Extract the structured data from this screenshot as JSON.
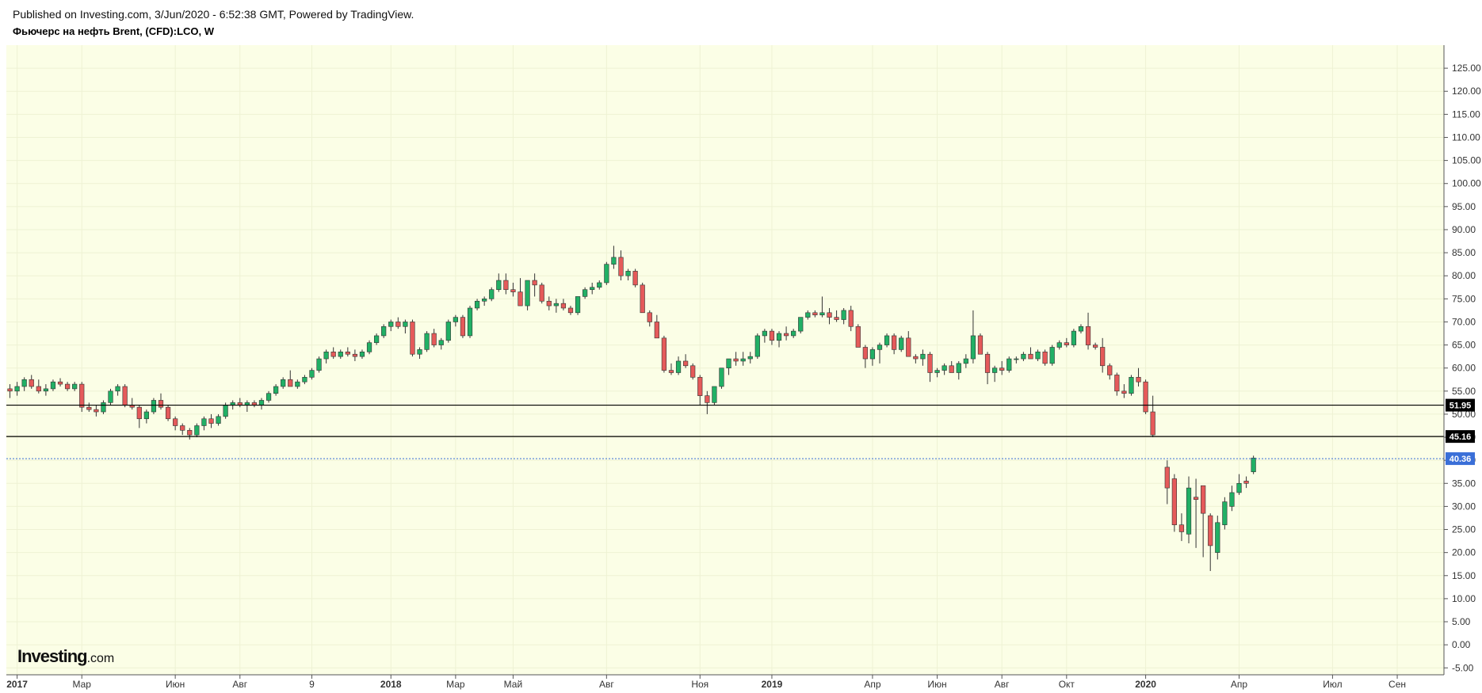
{
  "header": {
    "published": "Published on Investing.com, 3/Jun/2020 - 6:52:38 GMT, Powered by TradingView.",
    "symbol": "Фьючерс на нефть Brent, (CFD):LCO, W"
  },
  "logo": {
    "main": "Investing",
    "suffix": ".com"
  },
  "colors": {
    "background": "#fbfee6",
    "up": "#21b065",
    "down": "#e55a5a",
    "wick": "#333333",
    "level_line": "#000000",
    "current_line": "#3a6fd8",
    "current_badge": "#3a6fd8",
    "level_badge": "#000000"
  },
  "chart_data": {
    "type": "candlestick",
    "timeframe": "W",
    "y_ticks": [
      "125.00",
      "120.00",
      "115.00",
      "110.00",
      "105.00",
      "100.00",
      "95.00",
      "90.00",
      "85.00",
      "80.00",
      "75.00",
      "70.00",
      "65.00",
      "60.00",
      "55.00",
      "50.00",
      "45.00",
      "40.00",
      "35.00",
      "30.00",
      "25.00",
      "20.00",
      "15.00",
      "10.00",
      "5.00",
      "0.00",
      "-5.00"
    ],
    "y_tick_values": [
      125,
      120,
      115,
      110,
      105,
      100,
      95,
      90,
      85,
      80,
      75,
      70,
      65,
      60,
      55,
      50,
      45,
      40,
      35,
      30,
      25,
      20,
      15,
      10,
      5,
      0,
      -5
    ],
    "ylim": [
      -6.5,
      130
    ],
    "x_labels": [
      {
        "text": "2017",
        "year": true
      },
      {
        "text": "Мар",
        "year": false
      },
      {
        "text": "Июн",
        "year": false
      },
      {
        "text": "Авг",
        "year": false
      },
      {
        "text": "9",
        "year": false
      },
      {
        "text": "2018",
        "year": true
      },
      {
        "text": "Мар",
        "year": false
      },
      {
        "text": "Май",
        "year": false
      },
      {
        "text": "Авг",
        "year": false
      },
      {
        "text": "Ноя",
        "year": false
      },
      {
        "text": "2019",
        "year": true
      },
      {
        "text": "Апр",
        "year": false
      },
      {
        "text": "Июн",
        "year": false
      },
      {
        "text": "Авг",
        "year": false
      },
      {
        "text": "Окт",
        "year": false
      },
      {
        "text": "2020",
        "year": true
      },
      {
        "text": "Апр",
        "year": false
      },
      {
        "text": "Июл",
        "year": false
      },
      {
        "text": "Сен",
        "year": false
      }
    ],
    "x_label_weeks": [
      1,
      10,
      23,
      32,
      42,
      53,
      62,
      70,
      83,
      96,
      106,
      120,
      129,
      138,
      147,
      158,
      171,
      184,
      193
    ],
    "total_weeks": 200,
    "levels": [
      {
        "value": 51.95,
        "label": "51.95",
        "style": "solid"
      },
      {
        "value": 45.16,
        "label": "45.16",
        "style": "solid"
      }
    ],
    "current": {
      "value": 40.36,
      "label": "40.36",
      "style": "dotted"
    },
    "candles": [
      [
        55.5,
        56.5,
        53.5,
        55.0
      ],
      [
        55.0,
        57.0,
        54.0,
        56.0
      ],
      [
        56.0,
        58.0,
        55.0,
        57.5
      ],
      [
        57.5,
        58.5,
        55.5,
        56.0
      ],
      [
        56.0,
        57.5,
        54.5,
        55.0
      ],
      [
        55.0,
        56.5,
        54.0,
        55.5
      ],
      [
        55.5,
        57.5,
        55.0,
        57.0
      ],
      [
        57.0,
        57.8,
        56.0,
        56.5
      ],
      [
        56.5,
        57.0,
        55.0,
        55.5
      ],
      [
        55.5,
        57.0,
        55.0,
        56.5
      ],
      [
        56.5,
        57.0,
        50.5,
        51.5
      ],
      [
        51.5,
        52.5,
        50.5,
        51.0
      ],
      [
        51.0,
        52.0,
        49.5,
        50.5
      ],
      [
        50.5,
        53.0,
        50.0,
        52.5
      ],
      [
        52.5,
        55.5,
        52.0,
        55.0
      ],
      [
        55.0,
        56.5,
        54.0,
        56.0
      ],
      [
        56.0,
        56.5,
        51.5,
        52.0
      ],
      [
        52.0,
        53.5,
        51.0,
        51.5
      ],
      [
        51.5,
        52.0,
        47.0,
        49.0
      ],
      [
        49.0,
        51.0,
        48.0,
        50.5
      ],
      [
        50.5,
        53.5,
        50.0,
        53.0
      ],
      [
        53.0,
        54.5,
        51.0,
        51.5
      ],
      [
        51.5,
        52.0,
        48.5,
        49.0
      ],
      [
        49.0,
        49.5,
        46.5,
        47.5
      ],
      [
        47.5,
        48.0,
        45.5,
        46.5
      ],
      [
        46.5,
        47.0,
        44.5,
        45.5
      ],
      [
        45.5,
        48.0,
        45.0,
        47.5
      ],
      [
        47.5,
        49.5,
        46.5,
        49.0
      ],
      [
        49.0,
        50.0,
        47.0,
        48.0
      ],
      [
        48.0,
        50.0,
        47.5,
        49.5
      ],
      [
        49.5,
        52.5,
        49.0,
        52.0
      ],
      [
        52.0,
        53.0,
        51.0,
        52.5
      ],
      [
        52.5,
        53.5,
        51.5,
        52.0
      ],
      [
        52.0,
        53.0,
        50.5,
        52.5
      ],
      [
        52.5,
        53.0,
        51.5,
        52.0
      ],
      [
        52.0,
        53.5,
        51.0,
        53.0
      ],
      [
        53.0,
        55.0,
        52.5,
        54.5
      ],
      [
        54.5,
        56.5,
        54.0,
        56.0
      ],
      [
        56.0,
        58.0,
        55.5,
        57.5
      ],
      [
        57.5,
        59.5,
        56.5,
        56.0
      ],
      [
        56.0,
        57.5,
        55.5,
        57.0
      ],
      [
        57.0,
        58.5,
        56.5,
        58.0
      ],
      [
        58.0,
        60.0,
        57.5,
        59.5
      ],
      [
        59.5,
        62.5,
        59.0,
        62.0
      ],
      [
        62.0,
        64.0,
        61.0,
        63.5
      ],
      [
        63.5,
        64.5,
        62.0,
        62.5
      ],
      [
        62.5,
        64.0,
        62.0,
        63.5
      ],
      [
        63.5,
        64.5,
        62.5,
        63.0
      ],
      [
        63.0,
        64.0,
        61.5,
        62.5
      ],
      [
        62.5,
        64.0,
        62.0,
        63.5
      ],
      [
        63.5,
        66.0,
        63.0,
        65.5
      ],
      [
        65.5,
        67.5,
        65.0,
        67.0
      ],
      [
        67.0,
        69.5,
        66.5,
        69.0
      ],
      [
        69.0,
        70.5,
        68.0,
        70.0
      ],
      [
        70.0,
        71.0,
        68.5,
        69.0
      ],
      [
        69.0,
        70.5,
        67.5,
        70.0
      ],
      [
        70.0,
        70.5,
        62.5,
        63.0
      ],
      [
        63.0,
        64.5,
        62.0,
        64.0
      ],
      [
        64.0,
        68.0,
        63.5,
        67.5
      ],
      [
        67.5,
        68.5,
        64.5,
        65.0
      ],
      [
        65.0,
        66.5,
        64.0,
        66.0
      ],
      [
        66.0,
        70.5,
        65.5,
        70.0
      ],
      [
        70.0,
        71.5,
        69.0,
        71.0
      ],
      [
        71.0,
        71.5,
        66.5,
        67.0
      ],
      [
        67.0,
        73.5,
        66.5,
        73.0
      ],
      [
        73.0,
        75.0,
        72.5,
        74.5
      ],
      [
        74.5,
        75.5,
        73.5,
        75.0
      ],
      [
        75.0,
        77.5,
        74.5,
        77.0
      ],
      [
        77.0,
        80.5,
        76.5,
        79.0
      ],
      [
        79.0,
        80.5,
        76.0,
        77.0
      ],
      [
        77.0,
        78.5,
        75.5,
        76.5
      ],
      [
        76.5,
        79.5,
        73.5,
        73.5
      ],
      [
        73.5,
        79.0,
        72.5,
        79.0
      ],
      [
        79.0,
        80.5,
        75.5,
        78.0
      ],
      [
        78.0,
        78.5,
        74.0,
        74.5
      ],
      [
        74.5,
        75.5,
        72.5,
        73.5
      ],
      [
        73.5,
        75.0,
        72.0,
        74.0
      ],
      [
        74.0,
        75.0,
        72.5,
        73.0
      ],
      [
        73.0,
        73.5,
        71.5,
        72.0
      ],
      [
        72.0,
        75.5,
        71.5,
        75.5
      ],
      [
        75.5,
        77.5,
        75.0,
        77.0
      ],
      [
        77.0,
        78.5,
        76.0,
        77.5
      ],
      [
        77.5,
        79.0,
        77.0,
        78.5
      ],
      [
        78.5,
        83.0,
        78.0,
        82.5
      ],
      [
        82.5,
        86.5,
        81.5,
        84.0
      ],
      [
        84.0,
        85.5,
        79.0,
        80.0
      ],
      [
        80.0,
        81.5,
        79.0,
        81.0
      ],
      [
        81.0,
        81.5,
        77.5,
        78.0
      ],
      [
        78.0,
        78.5,
        72.0,
        72.0
      ],
      [
        72.0,
        72.5,
        69.0,
        70.0
      ],
      [
        70.0,
        71.5,
        66.5,
        66.5
      ],
      [
        66.5,
        67.0,
        59.0,
        59.5
      ],
      [
        59.5,
        61.0,
        58.5,
        59.0
      ],
      [
        59.0,
        62.5,
        58.5,
        61.5
      ],
      [
        61.5,
        63.0,
        60.0,
        60.5
      ],
      [
        60.5,
        61.0,
        57.5,
        58.0
      ],
      [
        58.0,
        58.5,
        52.0,
        54.0
      ],
      [
        54.0,
        55.0,
        50.0,
        52.5
      ],
      [
        52.5,
        56.0,
        52.0,
        56.0
      ],
      [
        56.0,
        60.0,
        55.5,
        60.0
      ],
      [
        60.0,
        62.0,
        58.5,
        62.0
      ],
      [
        62.0,
        63.5,
        60.5,
        61.5
      ],
      [
        61.5,
        63.5,
        60.5,
        62.0
      ],
      [
        62.0,
        63.5,
        61.0,
        62.5
      ],
      [
        62.5,
        67.5,
        62.0,
        67.0
      ],
      [
        67.0,
        68.5,
        65.5,
        68.0
      ],
      [
        68.0,
        68.5,
        65.0,
        66.0
      ],
      [
        66.0,
        68.0,
        64.5,
        67.5
      ],
      [
        67.5,
        69.0,
        66.0,
        67.0
      ],
      [
        67.0,
        68.5,
        66.5,
        68.0
      ],
      [
        68.0,
        71.0,
        67.5,
        71.0
      ],
      [
        71.0,
        72.5,
        70.5,
        72.0
      ],
      [
        72.0,
        72.5,
        71.0,
        71.5
      ],
      [
        71.5,
        75.5,
        71.0,
        72.0
      ],
      [
        72.0,
        73.0,
        69.5,
        71.0
      ],
      [
        71.0,
        72.5,
        70.0,
        70.5
      ],
      [
        70.5,
        73.0,
        69.5,
        72.5
      ],
      [
        72.5,
        73.5,
        68.0,
        69.0
      ],
      [
        69.0,
        69.5,
        64.5,
        64.5
      ],
      [
        64.5,
        65.0,
        60.0,
        62.0
      ],
      [
        62.0,
        64.5,
        60.5,
        64.0
      ],
      [
        64.0,
        65.5,
        61.0,
        65.0
      ],
      [
        65.0,
        67.5,
        64.5,
        67.0
      ],
      [
        67.0,
        67.5,
        63.0,
        64.0
      ],
      [
        64.0,
        67.0,
        63.5,
        66.5
      ],
      [
        66.5,
        68.0,
        62.5,
        62.5
      ],
      [
        62.5,
        63.0,
        61.0,
        62.0
      ],
      [
        62.0,
        64.0,
        60.5,
        63.0
      ],
      [
        63.0,
        63.5,
        57.0,
        59.0
      ],
      [
        59.0,
        60.0,
        58.0,
        59.5
      ],
      [
        59.5,
        61.0,
        58.5,
        60.5
      ],
      [
        60.5,
        61.5,
        59.0,
        59.0
      ],
      [
        59.0,
        61.5,
        57.5,
        61.0
      ],
      [
        61.0,
        63.0,
        60.0,
        62.0
      ],
      [
        62.0,
        72.5,
        61.0,
        67.0
      ],
      [
        67.0,
        67.5,
        63.0,
        63.0
      ],
      [
        63.0,
        63.5,
        56.5,
        59.0
      ],
      [
        59.0,
        60.5,
        57.0,
        60.0
      ],
      [
        60.0,
        61.5,
        58.5,
        59.5
      ],
      [
        59.5,
        62.5,
        59.0,
        62.0
      ],
      [
        62.0,
        62.5,
        61.0,
        62.0
      ],
      [
        62.0,
        63.5,
        61.5,
        63.0
      ],
      [
        63.0,
        64.5,
        62.0,
        62.0
      ],
      [
        62.0,
        64.0,
        61.5,
        63.5
      ],
      [
        63.5,
        64.0,
        60.5,
        61.0
      ],
      [
        61.0,
        65.0,
        60.5,
        64.5
      ],
      [
        64.5,
        66.0,
        64.0,
        65.5
      ],
      [
        65.5,
        66.5,
        64.5,
        65.0
      ],
      [
        65.0,
        68.5,
        64.5,
        68.0
      ],
      [
        68.0,
        69.5,
        67.5,
        69.0
      ],
      [
        69.0,
        72.0,
        64.0,
        65.0
      ],
      [
        65.0,
        65.5,
        64.0,
        64.5
      ],
      [
        64.5,
        66.5,
        59.0,
        60.5
      ],
      [
        60.5,
        61.0,
        57.5,
        58.5
      ],
      [
        58.5,
        59.0,
        54.0,
        55.0
      ],
      [
        55.0,
        56.5,
        53.5,
        54.5
      ],
      [
        54.5,
        58.5,
        54.0,
        58.0
      ],
      [
        58.0,
        60.0,
        56.0,
        57.0
      ],
      [
        57.0,
        57.5,
        50.0,
        50.5
      ],
      [
        50.5,
        54.0,
        45.0,
        45.5
      ],
      [
        null,
        null,
        null,
        null
      ],
      [
        38.5,
        40.0,
        30.5,
        34.0
      ],
      [
        36.0,
        37.0,
        24.5,
        26.0
      ],
      [
        26.0,
        28.5,
        22.5,
        24.5
      ],
      [
        24.0,
        36.5,
        22.0,
        34.0
      ],
      [
        32.0,
        36.0,
        21.0,
        31.5
      ],
      [
        34.5,
        34.5,
        19.0,
        28.5
      ],
      [
        28.0,
        28.5,
        16.0,
        21.5
      ],
      [
        20.0,
        28.0,
        18.5,
        26.5
      ],
      [
        26.0,
        32.0,
        25.0,
        31.0
      ],
      [
        30.0,
        34.5,
        29.0,
        33.0
      ],
      [
        33.0,
        37.0,
        32.5,
        35.0
      ],
      [
        35.5,
        36.5,
        34.0,
        35.0
      ],
      [
        37.5,
        41.0,
        37.0,
        40.5
      ]
    ]
  }
}
